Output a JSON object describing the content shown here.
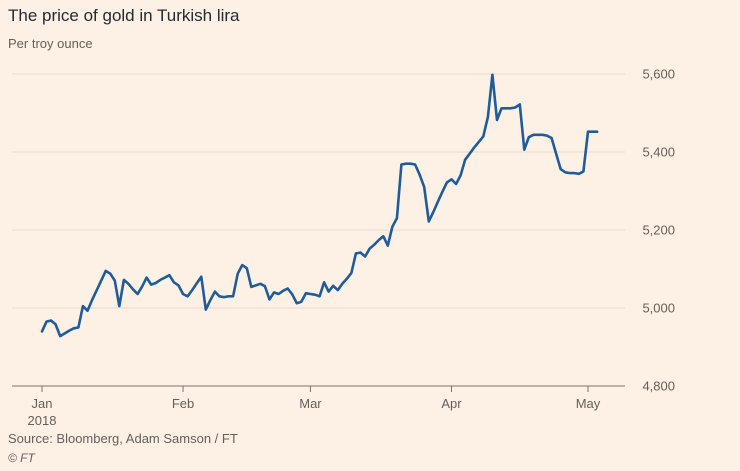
{
  "chart_data": {
    "type": "line",
    "title": "The price of gold in Turkish lira",
    "subtitle": "Per troy ounce",
    "xlabel": "",
    "ylabel": "",
    "ylim": [
      4800,
      5600
    ],
    "yticks": [
      4800,
      5000,
      5200,
      5400,
      5600
    ],
    "ytick_labels": [
      "4,800",
      "5,000",
      "5,200",
      "5,400",
      "5,600"
    ],
    "xticks": [
      {
        "day": 0,
        "label": "Jan",
        "sublabel": "2018"
      },
      {
        "day": 31,
        "label": "Feb"
      },
      {
        "day": 59,
        "label": "Mar"
      },
      {
        "day": 90,
        "label": "Apr"
      },
      {
        "day": 120,
        "label": "May"
      }
    ],
    "grid": true,
    "color": "#1f5c99",
    "series": [
      {
        "name": "Gold price (TRY per troy ounce)",
        "x": [
          0,
          1,
          2,
          3,
          4,
          5,
          6,
          7,
          8,
          9,
          10,
          11,
          12,
          13,
          14,
          15,
          16,
          17,
          18,
          19,
          20,
          21,
          22,
          23,
          24,
          25,
          26,
          27,
          28,
          29,
          30,
          31,
          32,
          33,
          34,
          35,
          36,
          37,
          38,
          39,
          40,
          41,
          42,
          43,
          44,
          45,
          46,
          47,
          48,
          49,
          50,
          51,
          52,
          53,
          54,
          55,
          56,
          57,
          58,
          59,
          60,
          61,
          62,
          63,
          64,
          65,
          66,
          67,
          68,
          69,
          70,
          71,
          72,
          73,
          74,
          75,
          76,
          77,
          78,
          79,
          80,
          81,
          82,
          83,
          84,
          85,
          86,
          87,
          88,
          89,
          90,
          91,
          92,
          93,
          94,
          95,
          96,
          97,
          98,
          99,
          100,
          101,
          102,
          103,
          104,
          105,
          106,
          107,
          108,
          109,
          110,
          111,
          112,
          113,
          114,
          115,
          116,
          117,
          118,
          119,
          120,
          121,
          122
        ],
        "values": [
          4940,
          4965,
          4968,
          4958,
          4928,
          4935,
          4942,
          4948,
          4950,
          5005,
          4993,
          5020,
          5045,
          5070,
          5095,
          5088,
          5070,
          5005,
          5072,
          5062,
          5048,
          5036,
          5055,
          5078,
          5060,
          5064,
          5072,
          5078,
          5084,
          5066,
          5058,
          5036,
          5030,
          5046,
          5063,
          5080,
          4996,
          5020,
          5042,
          5030,
          5028,
          5030,
          5030,
          5088,
          5110,
          5102,
          5054,
          5058,
          5062,
          5056,
          5022,
          5040,
          5036,
          5044,
          5050,
          5035,
          5012,
          5016,
          5038,
          5036,
          5034,
          5030,
          5066,
          5042,
          5057,
          5046,
          5062,
          5075,
          5090,
          5140,
          5142,
          5132,
          5152,
          5162,
          5174,
          5184,
          5160,
          5208,
          5230,
          5368,
          5370,
          5370,
          5368,
          5342,
          5310,
          5222,
          5246,
          5272,
          5298,
          5322,
          5330,
          5318,
          5340,
          5380,
          5396,
          5412,
          5426,
          5440,
          5490,
          5598,
          5482,
          5512,
          5512,
          5512,
          5514,
          5522,
          5406,
          5438,
          5444,
          5444,
          5444,
          5442,
          5436,
          5396,
          5356,
          5348,
          5346,
          5346,
          5344,
          5350,
          5452,
          5452,
          5452
        ]
      }
    ]
  },
  "footer": {
    "source": "Source: Bloomberg, Adam Samson / FT",
    "credit": "© FT"
  }
}
